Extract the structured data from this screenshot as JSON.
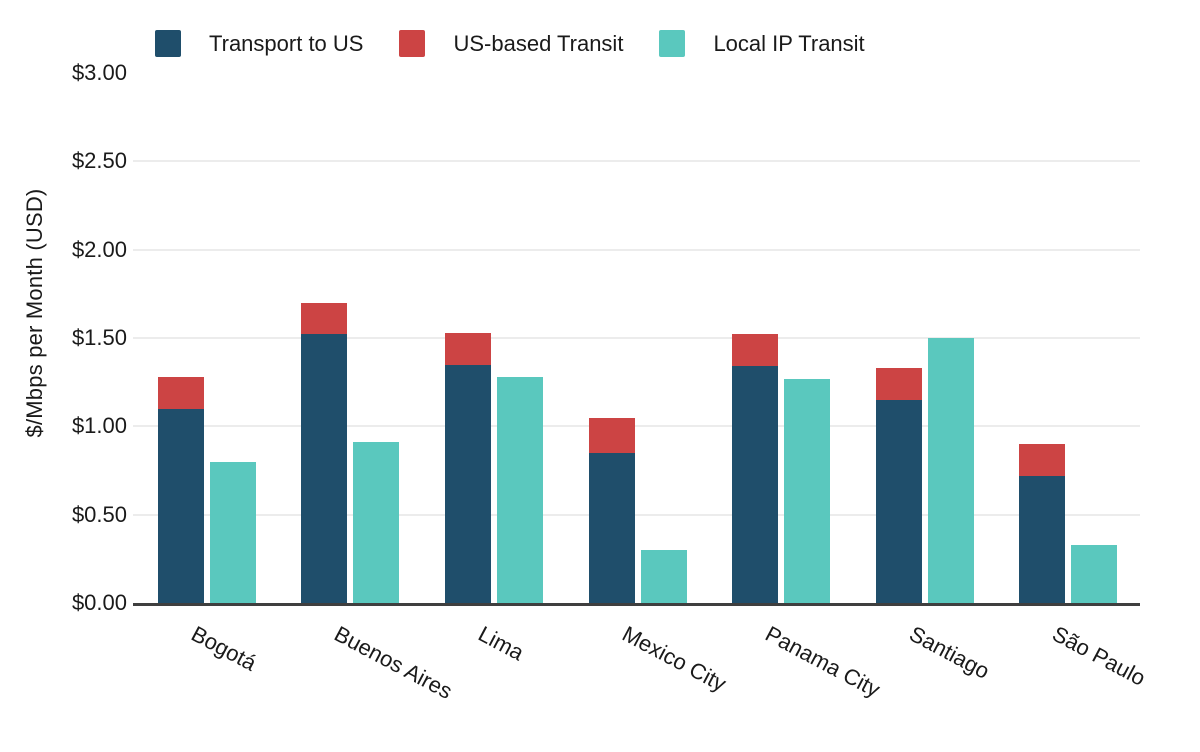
{
  "accent_colors": {
    "transport_navy": "#1F4E6B",
    "transit_red": "#CC4444",
    "local_teal": "#5AC8BE",
    "grid_gray": "#ececec",
    "axis_dark": "#3f3f3f",
    "text": "#1a1a1a"
  },
  "legend": {
    "items": [
      {
        "label": "Transport to US",
        "color": "#1F4E6B"
      },
      {
        "label": "US-based Transit",
        "color": "#CC4444"
      },
      {
        "label": "Local IP Transit",
        "color": "#5AC8BE"
      }
    ]
  },
  "chart_data": {
    "type": "bar",
    "layout": "per-category pair: one stacked bar (Transport to US + US-based Transit) and one separate bar (Local IP Transit)",
    "title": "",
    "xlabel": "",
    "ylabel": "$/Mbps per Month (USD)",
    "categories": [
      "Bogotá",
      "Buenos Aires",
      "Lima",
      "Mexico City",
      "Panama City",
      "Santiago",
      "São Paulo"
    ],
    "series": [
      {
        "name": "Transport to US",
        "color": "#1F4E6B",
        "stack": "A",
        "values": [
          1.1,
          1.52,
          1.35,
          0.85,
          1.34,
          1.15,
          0.72
        ]
      },
      {
        "name": "US-based Transit",
        "color": "#CC4444",
        "stack": "A",
        "values": [
          0.18,
          0.18,
          0.18,
          0.2,
          0.18,
          0.18,
          0.18
        ]
      },
      {
        "name": "Local IP Transit",
        "color": "#5AC8BE",
        "stack": "B",
        "values": [
          0.8,
          0.91,
          1.28,
          0.3,
          1.27,
          1.5,
          0.33
        ]
      }
    ],
    "stack_totals": [
      1.28,
      1.7,
      1.53,
      1.05,
      1.52,
      1.33,
      0.9
    ],
    "ylim": [
      0,
      3
    ],
    "yticks": [
      {
        "label": "$3.00",
        "value": 3.0
      },
      {
        "label": "$2.50",
        "value": 2.5
      },
      {
        "label": "$2.00",
        "value": 2.0
      },
      {
        "label": "$1.50",
        "value": 1.5
      },
      {
        "label": "$1.00",
        "value": 1.0
      },
      {
        "label": "$0.50",
        "value": 0.5
      },
      {
        "label": "$0.00",
        "value": 0.0
      }
    ],
    "grid": "horizontal gridlines at $0.50 steps, legend at top, x labels rotated ~28deg"
  }
}
